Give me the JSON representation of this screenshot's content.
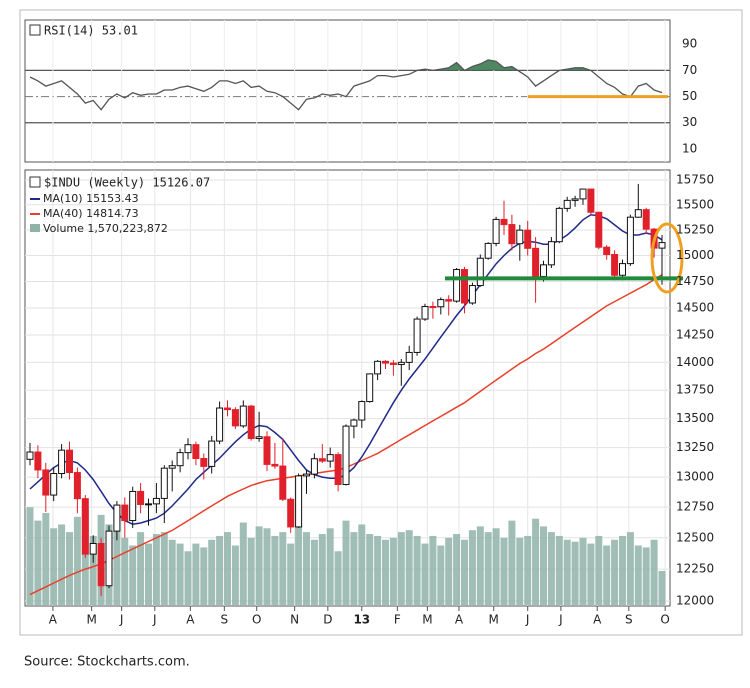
{
  "chart_data": {
    "type": "candlestick",
    "rsi_title": "RSI(14) 53.01",
    "price_title": "$INDU (Weekly) 15126.07",
    "ma10_label": "MA(10) 15153.43",
    "ma40_label": "MA(40) 14814.73",
    "volume_label": "Volume 1,570,223,872",
    "source": "Source: Stockcharts.com.",
    "log_scale": true,
    "grid": true,
    "up_color": "#ffffff",
    "down_color": "#e0202a",
    "ma10_color": "#1f2a8a",
    "ma40_color": "#e8402a",
    "volume_color": "#8fb3a8",
    "rsi_color": "#555555",
    "rsi_fill_color": "#3c7a52",
    "support_color": "#1e8a3a",
    "highlight_color": "#f0a020",
    "xticks": [
      {
        "value": 2.9,
        "label": "A"
      },
      {
        "value": 7.8,
        "label": "M"
      },
      {
        "value": 11.6,
        "label": "J"
      },
      {
        "value": 15.8,
        "label": "J"
      },
      {
        "value": 20.3,
        "label": "A"
      },
      {
        "value": 24.6,
        "label": "S"
      },
      {
        "value": 28.7,
        "label": "O"
      },
      {
        "value": 33.5,
        "label": "N"
      },
      {
        "value": 37.7,
        "label": "D"
      },
      {
        "value": 42.0,
        "label": "13"
      },
      {
        "value": 46.5,
        "label": "F"
      },
      {
        "value": 50.3,
        "label": "M"
      },
      {
        "value": 54.3,
        "label": "A"
      },
      {
        "value": 58.7,
        "label": "M"
      },
      {
        "value": 63.0,
        "label": "J"
      },
      {
        "value": 67.2,
        "label": "J"
      },
      {
        "value": 71.8,
        "label": "A"
      },
      {
        "value": 75.8,
        "label": "S"
      },
      {
        "value": 80.4,
        "label": "O"
      }
    ],
    "ylim": [
      12000,
      15750
    ],
    "yticks": [
      12000,
      12250,
      12500,
      12750,
      13000,
      13250,
      13500,
      13750,
      14000,
      14250,
      14500,
      14750,
      15000,
      15250,
      15500,
      15750
    ],
    "rsi_ylim": [
      0,
      107
    ],
    "rsi_yticks": [
      90,
      70,
      50,
      30,
      10
    ],
    "rsi_lines": [
      70,
      30
    ],
    "rsi_midline": 50,
    "rsi_highlight": 50,
    "support_level": 14780,
    "volume_ylim": [
      0,
      22000000000
    ],
    "open": [
      13150,
      13212,
      13060,
      12850,
      13030,
      13228,
      13038,
      12820,
      12369,
      12454,
      12119,
      12554,
      12767,
      12640,
      12880,
      12772,
      12777,
      12822,
      13075,
      13096,
      13207,
      13275,
      13157,
      13090,
      13306,
      13593,
      13579,
      13437,
      13610,
      13328,
      13343,
      13107,
      13093,
      12815,
      12588,
      13010,
      13025,
      13155,
      13135,
      13190,
      12938,
      13435,
      13488,
      13650,
      13896,
      14009,
      13993,
      13981,
      14000,
      14090,
      14397,
      14514,
      14512,
      14579,
      14565,
      14865,
      14547,
      14712,
      14974,
      15118,
      15354,
      15303,
      15115,
      15248,
      15070,
      14799,
      14910,
      15135,
      15464,
      15544,
      15559,
      15658,
      15425,
      15081,
      15010,
      14810,
      14922,
      15376,
      15451,
      15258,
      15072
    ],
    "high": [
      13290,
      13270,
      13120,
      13080,
      13280,
      13300,
      13080,
      12850,
      12520,
      12500,
      12600,
      12800,
      12830,
      12920,
      12950,
      12820,
      12950,
      13100,
      13140,
      13240,
      13330,
      13300,
      13200,
      13350,
      13650,
      13660,
      13600,
      13660,
      13620,
      13560,
      13390,
      13290,
      13330,
      12830,
      13030,
      13060,
      13200,
      13280,
      13250,
      13210,
      13450,
      13500,
      13660,
      13900,
      14020,
      14020,
      14020,
      14030,
      14150,
      14420,
      14540,
      14560,
      14600,
      14620,
      14880,
      14890,
      14740,
      15010,
      15130,
      15380,
      15540,
      15400,
      15300,
      15340,
      15180,
      14950,
      15180,
      15480,
      15580,
      15590,
      15660,
      15660,
      15430,
      15100,
      15050,
      14960,
      15400,
      15710,
      15470,
      15270,
      15200
    ],
    "low": [
      13100,
      12990,
      12710,
      12800,
      12990,
      12980,
      12700,
      12340,
      12300,
      12040,
      12100,
      12480,
      12500,
      12580,
      12700,
      12600,
      12700,
      12620,
      12880,
      13040,
      13150,
      13100,
      12980,
      13030,
      13280,
      13520,
      13410,
      13420,
      13310,
      13300,
      13050,
      13070,
      12800,
      12540,
      12580,
      12860,
      12990,
      13120,
      13080,
      12880,
      12930,
      13330,
      13420,
      13640,
      13840,
      13940,
      13880,
      13790,
      13930,
      14060,
      14380,
      14400,
      14440,
      14430,
      14550,
      14450,
      14530,
      14700,
      14960,
      15090,
      15200,
      15050,
      14950,
      15000,
      14550,
      14750,
      14880,
      15120,
      15430,
      15480,
      15500,
      15400,
      15060,
      14960,
      14760,
      14760,
      14900,
      15370,
      15210,
      14980,
      14720
    ],
    "close": [
      13212,
      13060,
      12850,
      13030,
      13228,
      13038,
      12820,
      12369,
      12454,
      12119,
      12554,
      12767,
      12640,
      12880,
      12772,
      12777,
      12822,
      13075,
      13096,
      13207,
      13275,
      13157,
      13090,
      13306,
      13593,
      13579,
      13437,
      13610,
      13328,
      13343,
      13107,
      13093,
      12815,
      12588,
      13010,
      13025,
      13155,
      13135,
      13190,
      12938,
      13435,
      13488,
      13650,
      13896,
      14009,
      13993,
      13981,
      14000,
      14090,
      14397,
      14514,
      14512,
      14579,
      14565,
      14865,
      14547,
      14712,
      14974,
      15118,
      15354,
      15303,
      15115,
      15248,
      15070,
      14799,
      14910,
      15135,
      15464,
      15544,
      15559,
      15658,
      15425,
      15081,
      15010,
      14810,
      14922,
      15376,
      15451,
      15258,
      15072,
      15126.07
    ],
    "ma10": [
      12900,
      12960,
      13020,
      13080,
      13120,
      13140,
      13120,
      13060,
      12980,
      12880,
      12780,
      12700,
      12640,
      12610,
      12620,
      12640,
      12660,
      12700,
      12760,
      12830,
      12900,
      12980,
      13040,
      13100,
      13160,
      13230,
      13300,
      13360,
      13410,
      13440,
      13430,
      13380,
      13320,
      13230,
      13140,
      13060,
      13020,
      13000,
      12990,
      12990,
      13020,
      13080,
      13170,
      13280,
      13400,
      13520,
      13640,
      13750,
      13850,
      13940,
      14030,
      14130,
      14230,
      14330,
      14430,
      14520,
      14620,
      14720,
      14820,
      14920,
      15000,
      15070,
      15120,
      15140,
      15130,
      15110,
      15110,
      15150,
      15200,
      15270,
      15350,
      15400,
      15390,
      15360,
      15300,
      15240,
      15200,
      15200,
      15220,
      15200,
      15153.43
    ],
    "ma40": [
      12050,
      12080,
      12110,
      12140,
      12170,
      12200,
      12225,
      12250,
      12270,
      12290,
      12320,
      12350,
      12380,
      12410,
      12440,
      12470,
      12500,
      12530,
      12560,
      12600,
      12640,
      12680,
      12720,
      12760,
      12800,
      12840,
      12870,
      12900,
      12930,
      12950,
      12970,
      12980,
      12990,
      13000,
      13010,
      13020,
      13030,
      13040,
      13050,
      13060,
      13080,
      13110,
      13140,
      13170,
      13200,
      13240,
      13280,
      13320,
      13360,
      13400,
      13440,
      13480,
      13520,
      13560,
      13600,
      13640,
      13690,
      13740,
      13790,
      13840,
      13890,
      13940,
      13990,
      14030,
      14080,
      14120,
      14170,
      14220,
      14270,
      14320,
      14370,
      14420,
      14470,
      14520,
      14560,
      14600,
      14640,
      14680,
      14720,
      14770,
      14814.73
    ],
    "volume": [
      4900000000.0,
      4200000000.0,
      4600000000.0,
      3800000000.0,
      4000000000.0,
      3600000000.0,
      4400000000.0,
      4800000000.0,
      3400000000.0,
      4500000000.0,
      4000000000.0,
      4600000000.0,
      3300000000.0,
      2900000000.0,
      3600000000.0,
      3000000000.0,
      3500000000.0,
      3600000000.0,
      3200000000.0,
      3000000000.0,
      2600000000.0,
      3000000000.0,
      2800000000.0,
      3200000000.0,
      3400000000.0,
      3600000000.0,
      2900000000.0,
      4100000000.0,
      3300000000.0,
      3900000000.0,
      3800000000.0,
      3400000000.0,
      3600000000.0,
      3000000000.0,
      4000000000.0,
      3600000000.0,
      3200000000.0,
      3500000000.0,
      3800000000.0,
      2600000000.0,
      4200000000.0,
      3600000000.0,
      4000000000.0,
      3500000000.0,
      3400000000.0,
      3200000000.0,
      3300000000.0,
      3600000000.0,
      3700000000.0,
      3400000000.0,
      3000000000.0,
      3400000000.0,
      2900000000.0,
      3300000000.0,
      3500000000.0,
      3200000000.0,
      3700000000.0,
      3900000000.0,
      3600000000.0,
      3800000000.0,
      3300000000.0,
      4200000000.0,
      3300000000.0,
      3400000000.0,
      4300000000.0,
      3900000000.0,
      3600000000.0,
      3400000000.0,
      3200000000.0,
      3100000000.0,
      3300000000.0,
      3000000000.0,
      3400000000.0,
      2900000000.0,
      3200000000.0,
      3400000000.0,
      3600000000.0,
      2900000000.0,
      2800000000.0,
      3200000000.0,
      1570223872
    ],
    "rsi": [
      65,
      62,
      58,
      60,
      62,
      57,
      52,
      45,
      47,
      40,
      48,
      52,
      49,
      53,
      51,
      52,
      52,
      55,
      55,
      57,
      58,
      56,
      54,
      57,
      62,
      62,
      60,
      62,
      57,
      58,
      54,
      53,
      50,
      45,
      40,
      48,
      49,
      52,
      51,
      52,
      50,
      58,
      60,
      62,
      66,
      66,
      65,
      66,
      67,
      70,
      71,
      70,
      71,
      72,
      76,
      70,
      73,
      75,
      78,
      77,
      72,
      73,
      69,
      65,
      58,
      62,
      66,
      70,
      71,
      72,
      72,
      70,
      65,
      60,
      57,
      52,
      50,
      58,
      60,
      55,
      53.01
    ]
  }
}
